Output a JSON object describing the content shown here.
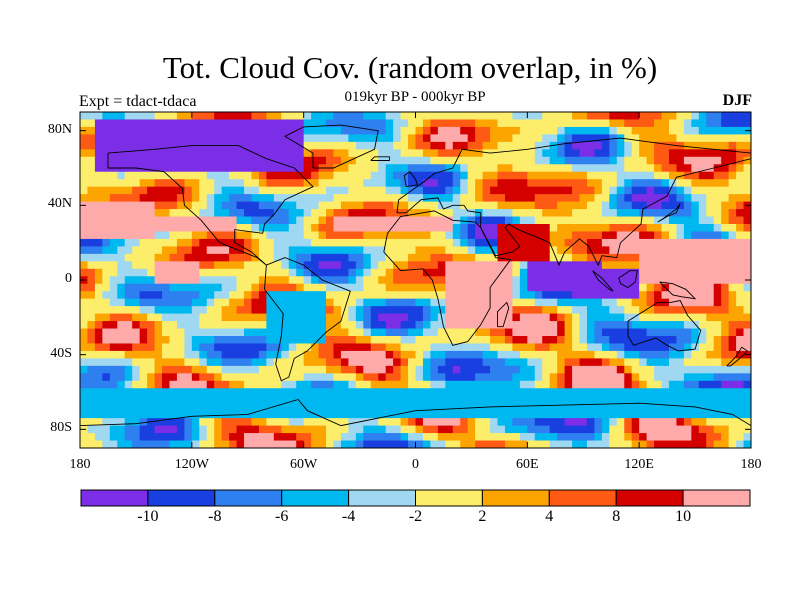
{
  "title": "Tot. Cloud Cov. (random overlap, in %)",
  "subtitle": "019kyr BP - 000kyr BP",
  "experiment_label": "Expt = tdact-tdaca",
  "season": "DJF",
  "map": {
    "projection": "cylindrical equidistant",
    "lon_range": [
      -180,
      180
    ],
    "lat_range": [
      -90,
      90
    ],
    "y_ticks": [
      {
        "lat": 80,
        "label": "80N"
      },
      {
        "lat": 40,
        "label": "40N"
      },
      {
        "lat": 0,
        "label": "0"
      },
      {
        "lat": -40,
        "label": "40S"
      },
      {
        "lat": -80,
        "label": "80S"
      }
    ],
    "x_ticks": [
      {
        "lon": -180,
        "label": "180"
      },
      {
        "lon": -120,
        "label": "120W"
      },
      {
        "lon": -60,
        "label": "60W"
      },
      {
        "lon": 0,
        "label": "0"
      },
      {
        "lon": 60,
        "label": "60E"
      },
      {
        "lon": 120,
        "label": "120E"
      },
      {
        "lon": 180,
        "label": "180"
      }
    ]
  },
  "colorbar": {
    "colors": [
      "#7b2ee6",
      "#1a3fe0",
      "#2e7ff0",
      "#00b8f0",
      "#9fd8f0",
      "#fcee6a",
      "#fca500",
      "#ff5a14",
      "#d40000",
      "#ffaaaa"
    ],
    "labels": [
      "-10",
      "-8",
      "-6",
      "-4",
      "-2",
      "2",
      "4",
      "8",
      "10"
    ]
  },
  "regions": [
    {
      "name": "northern-subtropical-pacific-band",
      "lon": [
        -180,
        -140
      ],
      "lat": [
        22,
        42
      ],
      "level": 9
    },
    {
      "name": "central-pacific-band",
      "lon": [
        -150,
        -95
      ],
      "lat": [
        25,
        35
      ],
      "level": 9
    },
    {
      "name": "north-atlantic-band",
      "lon": [
        -45,
        20
      ],
      "lat": [
        27,
        35
      ],
      "level": 9
    },
    {
      "name": "southwest-pacific-pink",
      "lon": [
        -140,
        -115
      ],
      "lat": [
        -2,
        8
      ],
      "level": 9
    },
    {
      "name": "african-pink-cloud",
      "lon": [
        15,
        50
      ],
      "lat": [
        -25,
        8
      ],
      "level": 9
    },
    {
      "name": "west-pacific-pink",
      "lon": [
        120,
        180
      ],
      "lat": [
        0,
        22
      ],
      "level": 9
    },
    {
      "name": "arabian-pink",
      "lon": [
        45,
        70
      ],
      "lat": [
        10,
        28
      ],
      "level": 8
    },
    {
      "name": "indian-ocean-deficit",
      "lon": [
        60,
        100
      ],
      "lat": [
        -5,
        10
      ],
      "level": 0
    },
    {
      "name": "maritime-continent-deficit",
      "lon": [
        85,
        120
      ],
      "lat": [
        -10,
        5
      ],
      "level": 0
    },
    {
      "name": "south-america-deficit",
      "lon": [
        -80,
        -50
      ],
      "lat": [
        -35,
        -5
      ],
      "level": 3
    },
    {
      "name": "antarctic-margin-blue",
      "lon": [
        -180,
        180
      ],
      "lat": [
        -72,
        -60
      ],
      "level": 3
    },
    {
      "name": "arctic-deficit",
      "lon": [
        -170,
        -60
      ],
      "lat": [
        60,
        85
      ],
      "level": 0
    }
  ]
}
